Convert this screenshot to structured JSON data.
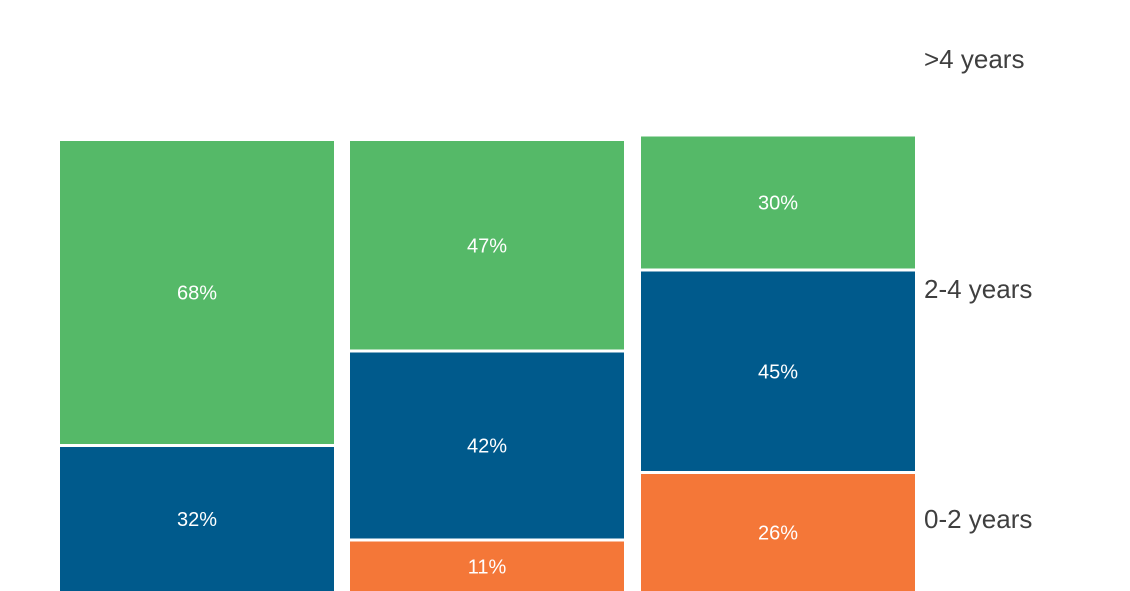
{
  "chart_data": {
    "type": "bar",
    "stacked": true,
    "orientation": "vertical",
    "categories": [
      "",
      "",
      ""
    ],
    "series": [
      {
        "name": "0-2 years",
        "color": "#f47738",
        "values": [
          0,
          11,
          26
        ],
        "labels": [
          "",
          "11%",
          "26%"
        ]
      },
      {
        "name": "2-4 years",
        "color": "#005a8c",
        "values": [
          32,
          42,
          45
        ],
        "labels": [
          "32%",
          "42%",
          "45%"
        ]
      },
      {
        "name": ">4 years",
        "color": "#55b968",
        "values": [
          68,
          47,
          30
        ],
        "labels": [
          "68%",
          "47%",
          "30%"
        ]
      }
    ],
    "value_unit": "%",
    "legend_placement": "right",
    "grid": false,
    "title": "",
    "xlabel": "",
    "ylabel": ""
  }
}
